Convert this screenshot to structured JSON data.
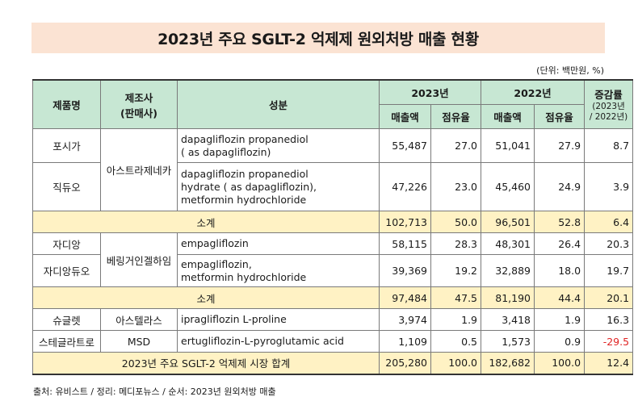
{
  "title": "2023년 주요 SGLT-2 억제제 원외처방 매출 현황",
  "unit_note": "(단위: 백만원, %)",
  "headers": {
    "product": "제품명",
    "maker_line1": "제조사",
    "maker_line2": "(판매사)",
    "ingredient": "성분",
    "year2023": "2023년",
    "year2022": "2022년",
    "growth": "증감률",
    "growth_sub1": "(2023년",
    "growth_sub2": "/ 2022년)",
    "sales": "매출액",
    "share": "점유율"
  },
  "rows": {
    "forxiga": {
      "product": "포시가",
      "ingr1": "dapagliflozin propanediol",
      "ingr2": "( as dapagliflozin)",
      "sales23": "55,487",
      "share23": "27.0",
      "sales22": "51,041",
      "share22": "27.9",
      "growth": "8.7"
    },
    "xigduo": {
      "product": "직듀오",
      "ingr1": "dapagliflozin propanediol",
      "ingr2": "hydrate  ( as dapagliflozin),",
      "ingr3": "metformin hydrochloride",
      "sales23": "47,226",
      "share23": "23.0",
      "sales22": "45,460",
      "share22": "24.9",
      "growth": "3.9"
    },
    "maker_az": "아스트라제네카",
    "subtotal_az": {
      "label": "소계",
      "sales23": "102,713",
      "share23": "50.0",
      "sales22": "96,501",
      "share22": "52.8",
      "growth": "6.4"
    },
    "jardiance": {
      "product": "자디앙",
      "ingr1": "empagliflozin",
      "sales23": "58,115",
      "share23": "28.3",
      "sales22": "48,301",
      "share22": "26.4",
      "growth": "20.3"
    },
    "jardiance_duo": {
      "product": "자디앙듀오",
      "ingr1": "empagliflozin,",
      "ingr2": "metformin hydrochloride",
      "sales23": "39,369",
      "share23": "19.2",
      "sales22": "32,889",
      "share22": "18.0",
      "growth": "19.7"
    },
    "maker_bi": "베링거인겔하임",
    "subtotal_bi": {
      "label": "소계",
      "sales23": "97,484",
      "share23": "47.5",
      "sales22": "81,190",
      "share22": "44.4",
      "growth": "20.1"
    },
    "suglat": {
      "product": "슈글렛",
      "maker": "아스텔라스",
      "ingr1": "ipragliflozin L-proline",
      "sales23": "3,974",
      "share23": "1.9",
      "sales22": "3,418",
      "share22": "1.9",
      "growth": "16.3"
    },
    "steglatro": {
      "product": "스테글라트로",
      "maker": "MSD",
      "ingr1": "ertugliflozin-L-pyroglutamic acid",
      "sales23": "1,109",
      "share23": "0.5",
      "sales22": "1,573",
      "share22": "0.9",
      "growth": "-29.5"
    },
    "total": {
      "label": "2023년 주요 SGLT-2 억제제 시장 합계",
      "sales23": "205,280",
      "share23": "100.0",
      "sales22": "182,682",
      "share22": "100.0",
      "growth": "12.4"
    }
  },
  "colors": {
    "title_bg": "#fbe3d3",
    "header_bg": "#c7e7d3",
    "subtotal_bg": "#fff2c4",
    "negative": "#e02424"
  },
  "source": "출처: 유비스트 / 정리: 메디포뉴스 / 순서: 2023년 원외처방 매출"
}
